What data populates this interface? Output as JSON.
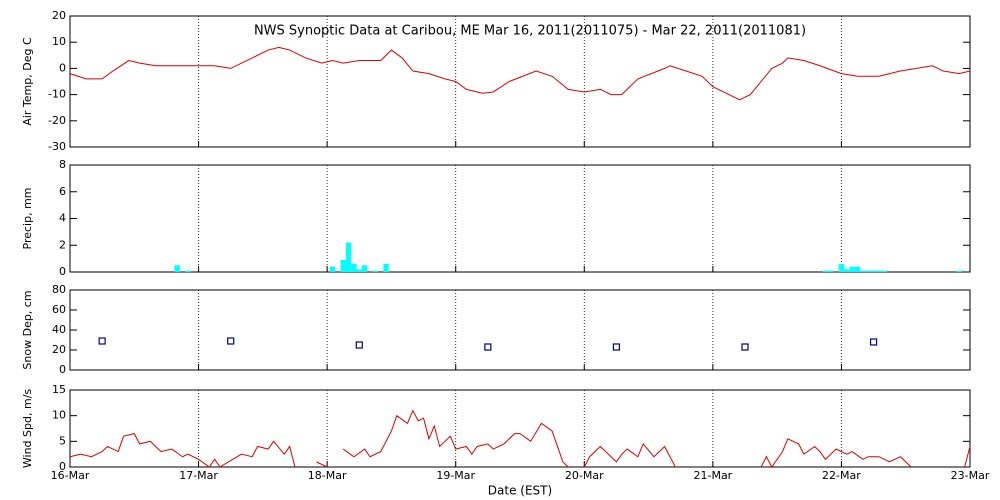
{
  "chart_data": [
    {
      "type": "line",
      "title": "NWS Synoptic Data at Caribou, ME   Mar 16, 2011(2011075) - Mar 22, 2011(2011081)",
      "ylabel": "Air Temp, Deg C",
      "color": "#e00000",
      "xlim": [
        0,
        168
      ],
      "xticks": [
        0,
        24,
        48,
        72,
        96,
        120,
        144,
        168
      ],
      "ylim": [
        -30,
        20
      ],
      "yticks": [
        -30,
        -20,
        -10,
        0,
        10,
        20
      ],
      "x": [
        0,
        3,
        6,
        8,
        11,
        13,
        16,
        21,
        24,
        27,
        30,
        33,
        37,
        39,
        41,
        44,
        47,
        49,
        51,
        54,
        58,
        60,
        62,
        64,
        67,
        70,
        72,
        74,
        77,
        79,
        82,
        87,
        90,
        93,
        96,
        99,
        101,
        103,
        106,
        111,
        112,
        115,
        118,
        120,
        123,
        125,
        127,
        131,
        133,
        134,
        137,
        140,
        144,
        147,
        151,
        155,
        158,
        161,
        163,
        166,
        168
      ],
      "values": [
        -2,
        -4,
        -4,
        -1,
        3,
        2,
        1,
        1,
        1,
        1,
        0,
        3,
        7,
        8,
        7,
        4,
        2,
        3,
        2,
        3,
        3,
        7,
        4,
        -1,
        -2,
        -4,
        -5,
        -8,
        -9.5,
        -9,
        -5,
        -1,
        -3,
        -8,
        -9,
        -8,
        -10,
        -10,
        -4,
        0,
        1,
        -1,
        -3,
        -7,
        -10,
        -12,
        -10,
        0,
        2,
        4,
        3,
        1,
        -2,
        -3,
        -3,
        -1,
        0,
        1,
        -1,
        -2,
        -1
      ]
    },
    {
      "type": "bar",
      "ylabel": "Precip, mm",
      "color": "#00ffff",
      "xlim": [
        0,
        168
      ],
      "xticks": [
        0,
        24,
        48,
        72,
        96,
        120,
        144,
        168
      ],
      "ylim": [
        0,
        8
      ],
      "yticks": [
        0,
        2,
        4,
        6,
        8
      ],
      "x": [
        20,
        22,
        49,
        51,
        52,
        53,
        54,
        55,
        57,
        59,
        141,
        142,
        144,
        145,
        146,
        147,
        148,
        149,
        150,
        151,
        152,
        166
      ],
      "values": [
        0.5,
        0.1,
        0.4,
        0.9,
        2.2,
        0.6,
        0.2,
        0.5,
        0.1,
        0.6,
        0.1,
        0.1,
        0.6,
        0.2,
        0.4,
        0.4,
        0.1,
        0.1,
        0.1,
        0.1,
        0.1,
        0.1
      ]
    },
    {
      "type": "scatter",
      "ylabel": "Snow Dep, cm",
      "color": "#00008b",
      "xlim": [
        0,
        168
      ],
      "xticks": [
        0,
        24,
        48,
        72,
        96,
        120,
        144,
        168
      ],
      "ylim": [
        0,
        80
      ],
      "yticks": [
        0,
        20,
        40,
        60,
        80
      ],
      "x": [
        6,
        30,
        54,
        78,
        102,
        126,
        150
      ],
      "values": [
        29,
        29,
        25,
        23,
        23,
        23,
        28
      ]
    },
    {
      "type": "line",
      "ylabel": "Wind Spd, m/s",
      "xlabel": "Date (EST)",
      "color": "#e00000",
      "xlim": [
        0,
        168
      ],
      "xticks": [
        {
          "value": 0,
          "label": "16-Mar"
        },
        {
          "value": 24,
          "label": "17-Mar"
        },
        {
          "value": 48,
          "label": "18-Mar"
        },
        {
          "value": 72,
          "label": "19-Mar"
        },
        {
          "value": 96,
          "label": "20-Mar"
        },
        {
          "value": 120,
          "label": "21-Mar"
        },
        {
          "value": 144,
          "label": "22-Mar"
        },
        {
          "value": 168,
          "label": "23-Mar"
        }
      ],
      "ylim": [
        0,
        15
      ],
      "yticks": [
        0,
        5,
        10,
        15
      ],
      "x": [
        0,
        2,
        4,
        6,
        7,
        9,
        10,
        12,
        13,
        15,
        17,
        19,
        21,
        22,
        24,
        26,
        27,
        28,
        32,
        34,
        35,
        37,
        38,
        40,
        41,
        42,
        44,
        46,
        48,
        50,
        51,
        53,
        55,
        56,
        58,
        60,
        61,
        63,
        64,
        65,
        66,
        67,
        68,
        69,
        71,
        72,
        74,
        75,
        76,
        78,
        79,
        81,
        83,
        84,
        86,
        88,
        90,
        91,
        92,
        93,
        94,
        96,
        97,
        99,
        100,
        102,
        103,
        104,
        106,
        107,
        109,
        111,
        112,
        113,
        120,
        129,
        130,
        131,
        133,
        134,
        136,
        137,
        139,
        140,
        141,
        143,
        145,
        146,
        148,
        149,
        151,
        153,
        155,
        157,
        160,
        167,
        168
      ],
      "values": [
        2,
        2.5,
        2,
        3,
        4,
        3,
        6,
        6.5,
        4.5,
        5,
        3,
        3.5,
        2,
        2.5,
        1.5,
        0,
        1.5,
        0,
        2.5,
        2,
        4,
        3.5,
        5,
        2.5,
        4,
        0,
        null,
        1,
        0,
        null,
        3.5,
        2,
        3.5,
        2,
        3,
        7,
        10,
        8.5,
        11,
        9,
        9.5,
        5.5,
        8,
        4,
        6,
        3.5,
        4,
        2.5,
        4,
        4.5,
        3.5,
        4.5,
        6.5,
        6.5,
        5,
        8.5,
        7,
        4,
        1,
        0,
        null,
        0,
        2,
        4,
        3,
        1,
        2.5,
        3.5,
        2,
        4.5,
        2,
        4,
        2,
        0,
        null,
        0,
        2,
        0,
        3,
        5.5,
        4.5,
        2.5,
        4,
        3,
        1.5,
        3.5,
        2.5,
        3,
        1.5,
        2,
        2,
        1,
        2,
        0,
        null,
        0,
        4
      ]
    }
  ]
}
